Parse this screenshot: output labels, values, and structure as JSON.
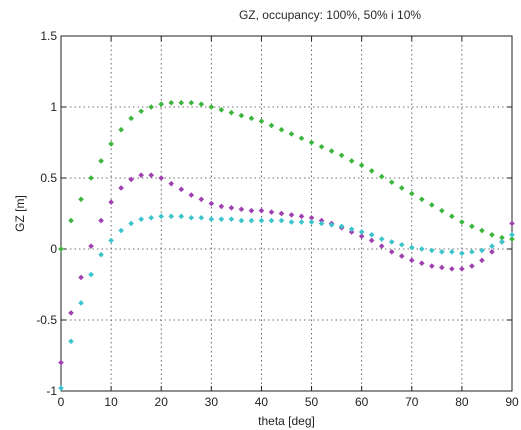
{
  "chart_data": {
    "type": "scatter",
    "title": "GZ, occupancy:  100%, 50% i 10%",
    "xlabel": "theta [deg]",
    "ylabel": "GZ [m]",
    "xlim": [
      0,
      90
    ],
    "ylim": [
      -1,
      1.5
    ],
    "x_ticks": [
      "0",
      "10",
      "20",
      "30",
      "40",
      "50",
      "60",
      "70",
      "80",
      "90"
    ],
    "y_ticks": [
      "-1",
      "-0.5",
      "0",
      "0.5",
      "1",
      "1.5"
    ],
    "grid": true,
    "series": [
      {
        "color": "#3cb53c",
        "x": [
          0,
          2,
          4,
          6,
          8,
          10,
          12,
          14,
          16,
          18,
          20,
          22,
          24,
          26,
          28,
          30,
          32,
          34,
          36,
          38,
          40,
          42,
          44,
          46,
          48,
          50,
          52,
          54,
          56,
          58,
          60,
          62,
          64,
          66,
          68,
          70,
          72,
          74,
          76,
          78,
          80,
          82,
          84,
          86,
          88,
          90
        ],
        "y": [
          0.0,
          0.2,
          0.35,
          0.5,
          0.62,
          0.74,
          0.84,
          0.92,
          0.97,
          1.0,
          1.02,
          1.03,
          1.03,
          1.03,
          1.02,
          1.0,
          0.98,
          0.96,
          0.94,
          0.92,
          0.9,
          0.87,
          0.84,
          0.81,
          0.78,
          0.75,
          0.72,
          0.69,
          0.66,
          0.62,
          0.59,
          0.55,
          0.51,
          0.47,
          0.43,
          0.39,
          0.35,
          0.31,
          0.27,
          0.23,
          0.19,
          0.16,
          0.13,
          0.1,
          0.08,
          0.07
        ]
      },
      {
        "color": "#a040b0",
        "x": [
          0,
          2,
          4,
          6,
          8,
          10,
          12,
          14,
          16,
          18,
          20,
          22,
          24,
          26,
          28,
          30,
          32,
          34,
          36,
          38,
          40,
          42,
          44,
          46,
          48,
          50,
          52,
          54,
          56,
          58,
          60,
          62,
          64,
          66,
          68,
          70,
          72,
          74,
          76,
          78,
          80,
          82,
          84,
          86,
          88,
          90
        ],
        "y": [
          -0.8,
          -0.45,
          -0.2,
          0.02,
          0.2,
          0.33,
          0.43,
          0.49,
          0.52,
          0.52,
          0.5,
          0.46,
          0.42,
          0.38,
          0.35,
          0.32,
          0.3,
          0.29,
          0.28,
          0.27,
          0.27,
          0.26,
          0.25,
          0.24,
          0.23,
          0.22,
          0.2,
          0.18,
          0.15,
          0.12,
          0.09,
          0.06,
          0.02,
          -0.02,
          -0.05,
          -0.08,
          -0.1,
          -0.12,
          -0.13,
          -0.14,
          -0.14,
          -0.12,
          -0.08,
          -0.02,
          0.05,
          0.18
        ]
      },
      {
        "color": "#3cc4cc",
        "x": [
          0,
          2,
          4,
          6,
          8,
          10,
          12,
          14,
          16,
          18,
          20,
          22,
          24,
          26,
          28,
          30,
          32,
          34,
          36,
          38,
          40,
          42,
          44,
          46,
          48,
          50,
          52,
          54,
          56,
          58,
          60,
          62,
          64,
          66,
          68,
          70,
          72,
          74,
          76,
          78,
          80,
          82,
          84,
          86,
          88,
          90
        ],
        "y": [
          -0.98,
          -0.65,
          -0.38,
          -0.18,
          -0.04,
          0.06,
          0.13,
          0.18,
          0.21,
          0.22,
          0.23,
          0.23,
          0.23,
          0.22,
          0.22,
          0.21,
          0.21,
          0.21,
          0.2,
          0.2,
          0.2,
          0.2,
          0.2,
          0.19,
          0.19,
          0.19,
          0.18,
          0.17,
          0.16,
          0.14,
          0.12,
          0.1,
          0.07,
          0.05,
          0.03,
          0.01,
          0.0,
          -0.01,
          -0.02,
          -0.02,
          -0.03,
          -0.02,
          -0.01,
          0.02,
          0.05,
          0.1
        ]
      }
    ]
  }
}
